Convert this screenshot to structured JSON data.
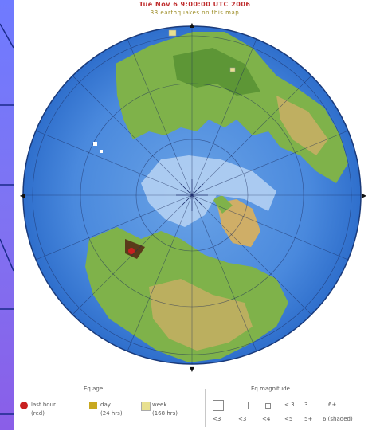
{
  "header": {
    "title": "Tue Nov 6 9:00:00 UTC 2006",
    "subtitle": "33 earthquakes on this map"
  },
  "colors": {
    "ocean_deep": "#2f6fcc",
    "ocean": "#4a89dd",
    "ocean_shallow": "#78aee6",
    "land_green": "#7fb24a",
    "land_dark": "#4f8a2e",
    "land_tan": "#cfae67",
    "ice": "#b8d4f3",
    "earthquake_marker": "#c82020",
    "background": "#7a70ee"
  },
  "legend": {
    "age_title": "Eq age",
    "age_items": [
      {
        "label": "last hour",
        "sub": "(red)",
        "color": "#c82020"
      },
      {
        "label": "day",
        "sub": "(24 hrs)",
        "color": "#c8a820"
      },
      {
        "label": "week",
        "sub": "(168 hrs)",
        "color": "#e8e090"
      }
    ],
    "magnitude_title": "Eq magnitude",
    "magnitude_values": [
      "< 3",
      "3",
      "4",
      "5",
      "6+"
    ],
    "magnitude_row": [
      "<3",
      "<3",
      "<4",
      "<5",
      "5+",
      "6 (shaded)"
    ]
  },
  "markers": [
    {
      "name": "marker-north",
      "symbol": "▲"
    },
    {
      "name": "marker-south",
      "symbol": "▼"
    },
    {
      "name": "marker-west",
      "symbol": "◀"
    },
    {
      "name": "marker-east",
      "symbol": "▶"
    }
  ]
}
